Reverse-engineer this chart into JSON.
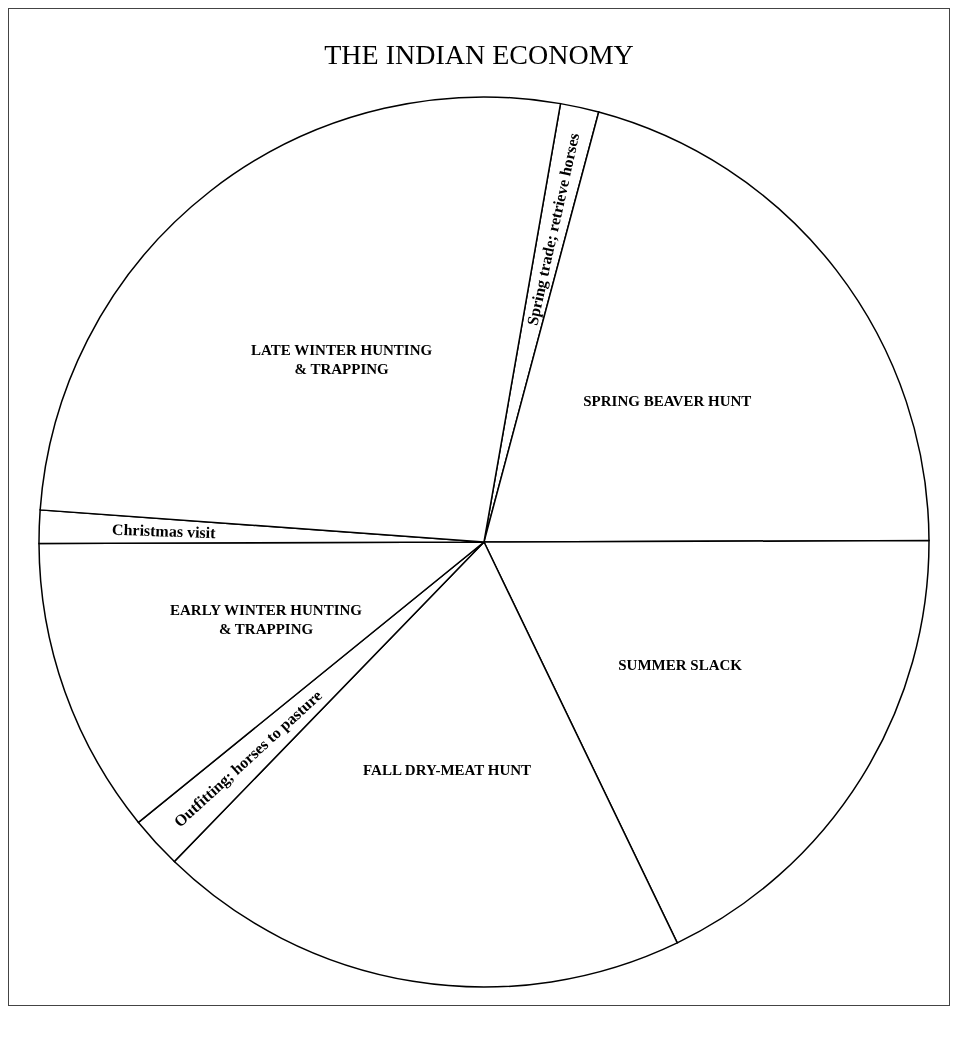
{
  "chart_data": {
    "type": "pie",
    "title": "THE INDIAN ECONOMY",
    "categories": [
      "Spring trade; retrieve horses",
      "SPRING BEAVER HUNT",
      "SUMMER SLACK",
      "FALL DRY-MEAT HUNT",
      "Outfitting; horses to pasture",
      "EARLY WINTER HUNTING & TRAPPING",
      "Christmas visit",
      "LATE WINTER HUNTING & TRAPPING"
    ],
    "values": [
      1.4,
      20.8,
      17.9,
      19.4,
      1.9,
      10.8,
      1.2,
      26.6
    ],
    "colors": [
      "#ffffff",
      "#ffffff",
      "#ffffff",
      "#ffffff",
      "#ffffff",
      "#ffffff",
      "#ffffff",
      "#ffffff"
    ],
    "legend": false
  }
}
